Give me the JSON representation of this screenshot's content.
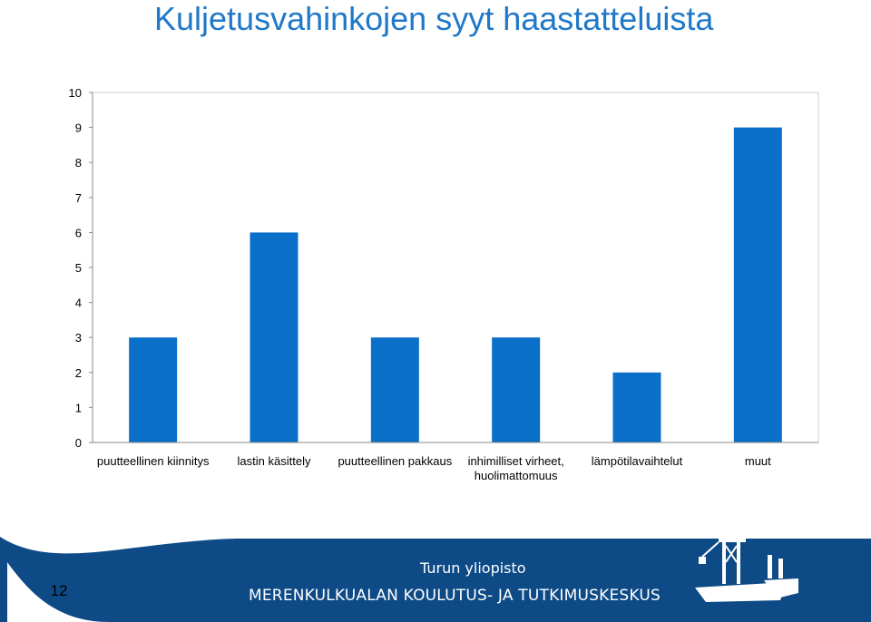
{
  "slide": {
    "title": "Kuljetusvahinkojen syyt haastatteluista",
    "page_number": "12"
  },
  "footer": {
    "university": "Turun yliopisto",
    "centre": "MERENKULKUALAN KOULUTUS- JA TUTKIMUSKESKUS"
  },
  "colors": {
    "bar": "#0a6fc9",
    "footer_bg": "#0d4a86",
    "title": "#1f78c8"
  },
  "chart_data": {
    "type": "bar",
    "categories": [
      [
        "puutteellinen kiinnitys"
      ],
      [
        "lastin käsittely"
      ],
      [
        "puutteellinen pakkaus"
      ],
      [
        "inhimilliset virheet,",
        "huolimattomuus"
      ],
      [
        "lämpötilavaihtelut"
      ],
      [
        "muut"
      ]
    ],
    "values": [
      3,
      6,
      3,
      3,
      2,
      9
    ],
    "ylim": [
      0,
      10
    ],
    "yticks": [
      0,
      1,
      2,
      3,
      4,
      5,
      6,
      7,
      8,
      9,
      10
    ],
    "grid": false,
    "legend": "none"
  }
}
